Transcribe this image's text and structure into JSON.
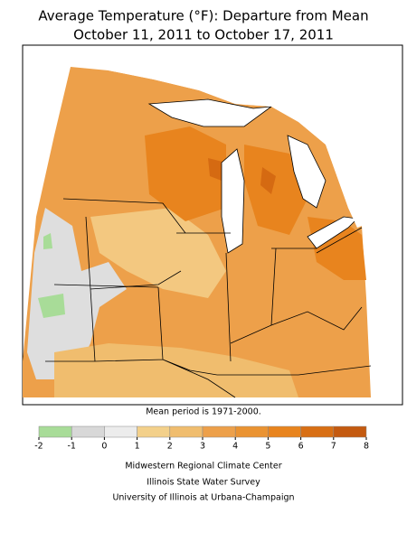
{
  "header": {
    "title": [
      "Average Temperature (°F): Departure from Mean",
      "October 11, 2011 to October 17, 2011"
    ]
  },
  "map": {
    "note": "Mean period is 1971-2000."
  },
  "legend": {
    "ticks": [
      -2,
      -1,
      0,
      1,
      2,
      3,
      4,
      5,
      6,
      7,
      8
    ],
    "colors": [
      "#a8dc98",
      "#d8d8d8",
      "#ececec",
      "#f3d08a",
      "#f0bd6e",
      "#eda04a",
      "#ea9332",
      "#e8841e",
      "#d86f14",
      "#c45a10"
    ]
  },
  "footer": {
    "credits": [
      "Midwestern Regional Climate Center",
      "Illinois State Water Survey",
      "University of Illinois at Urbana-Champaign"
    ]
  }
}
